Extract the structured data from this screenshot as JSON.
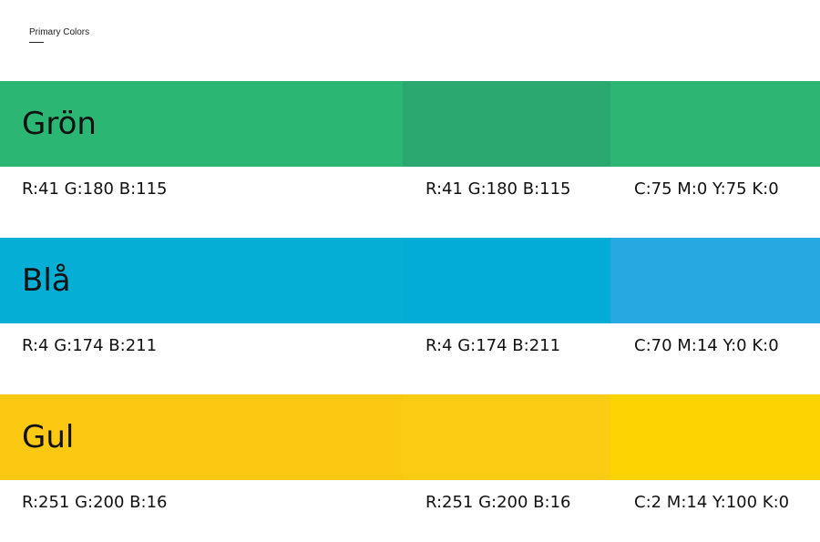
{
  "header": {
    "title": "Primary Colors"
  },
  "swatches": [
    {
      "name": "Grön",
      "rgb": "R:41 G:180 B:115",
      "cmyk": "C:75 M:0 Y:75 K:0",
      "colors": [
        "#2bb673",
        "#2ba870",
        "#2db673"
      ]
    },
    {
      "name": "Blå",
      "rgb": "R:4 G:174 B:211",
      "cmyk": "C:70 M:14 Y:0 K:0",
      "colors": [
        "#05aed5",
        "#02acd4",
        "#27a8e1"
      ]
    },
    {
      "name": "Gul",
      "rgb": "R:251 G:200 B:16",
      "cmyk": "C:2 M:14 Y:100 K:0",
      "colors": [
        "#fbc812",
        "#fccb14",
        "#fdd400"
      ]
    }
  ]
}
